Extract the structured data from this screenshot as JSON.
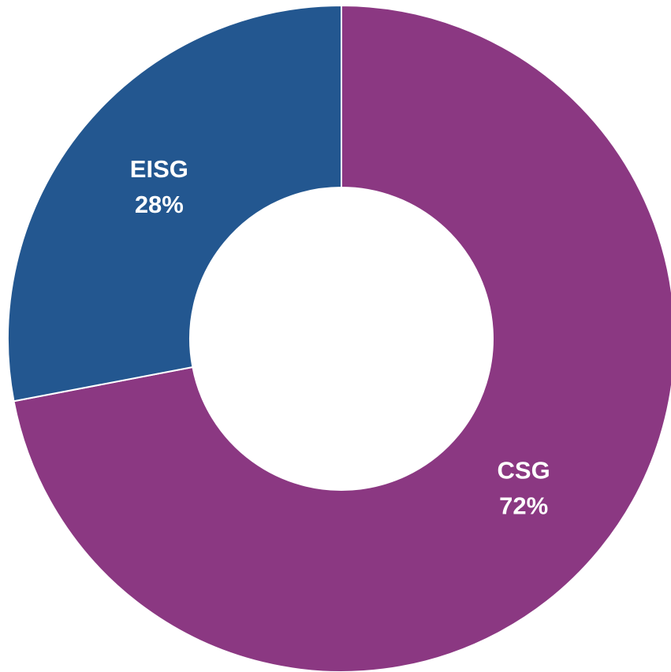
{
  "chart_data": {
    "type": "donut",
    "categories": [
      "CSG",
      "EISG"
    ],
    "values": [
      72,
      28
    ],
    "value_labels": [
      "72%",
      "28%"
    ],
    "colors": [
      "#8b3882",
      "#235790"
    ]
  }
}
